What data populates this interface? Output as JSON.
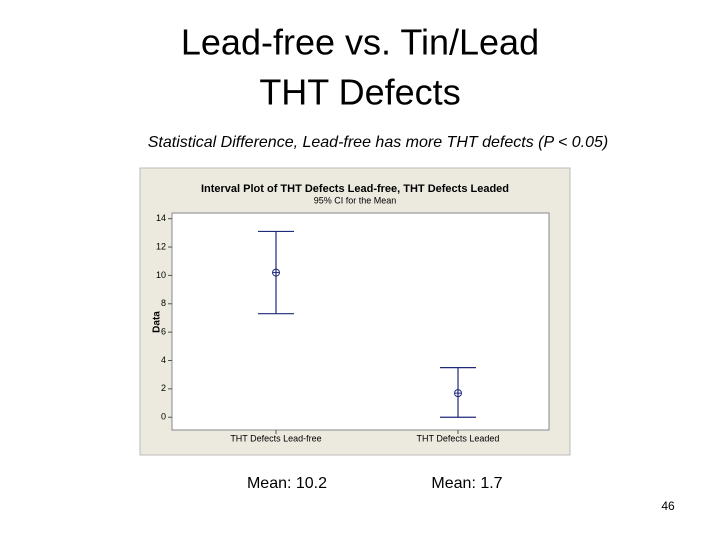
{
  "slide": {
    "title_lines": [
      "Lead-free vs. Tin/Lead",
      "THT Defects"
    ],
    "subtitle": "Statistical Difference, Lead-free has more THT defects  (P < 0.05)",
    "mean_labels": [
      "Mean: 10.2",
      "Mean: 1.7"
    ],
    "page_number": "46"
  },
  "chart_data": {
    "type": "interval",
    "title": "Interval Plot of THT Defects Lead-free, THT Defects Leaded",
    "subtitle": "95% CI for the Mean",
    "y_label": "Data",
    "categories": [
      "THT Defects Lead-free",
      "THT Defects Leaded"
    ],
    "means": [
      10.2,
      1.7
    ],
    "lower": [
      7.3,
      0
    ],
    "upper": [
      13.1,
      3.5
    ],
    "color": "#1f2a7a",
    "ylim": [
      -0.9,
      14.4
    ],
    "yticks": [
      0,
      2,
      4,
      6,
      8,
      10,
      12,
      14
    ]
  }
}
